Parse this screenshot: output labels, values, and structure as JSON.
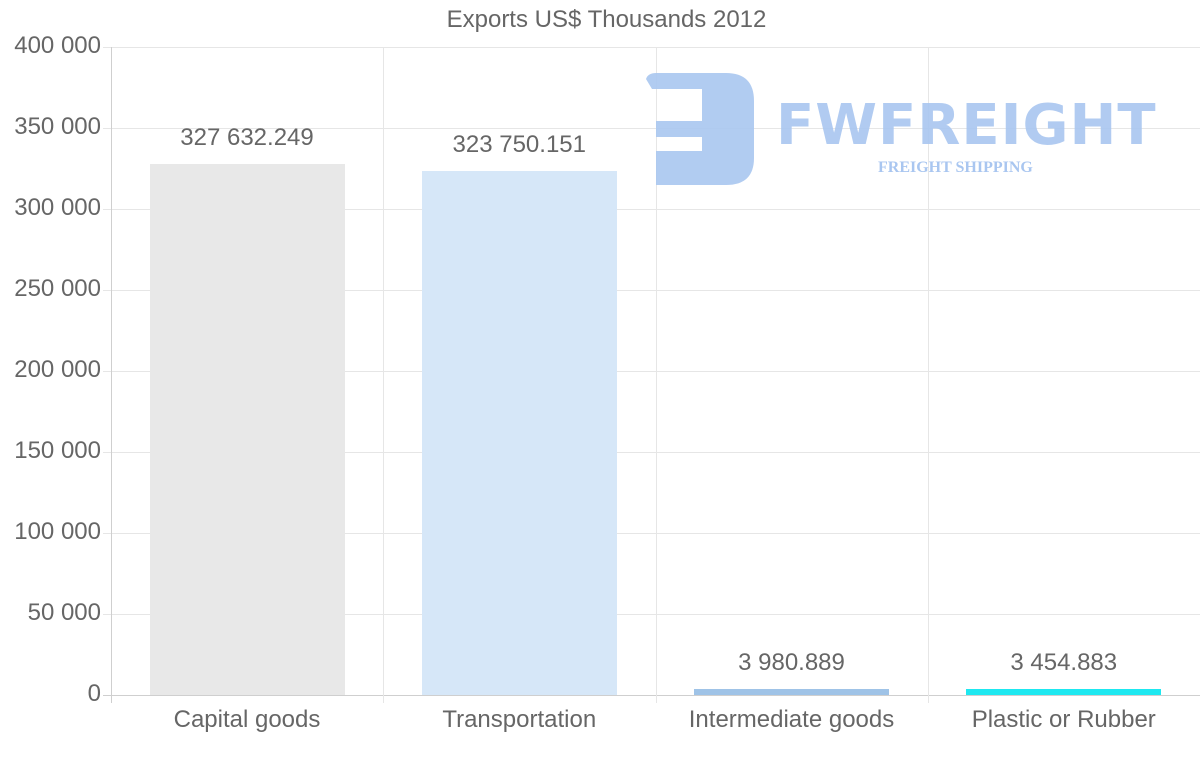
{
  "chart_data": {
    "type": "bar",
    "title": "Exports US$ Thousands 2012",
    "categories": [
      "Capital goods",
      "Transportation",
      "Intermediate goods",
      "Plastic or Rubber"
    ],
    "values": [
      327632.249,
      323750.151,
      3980.889,
      3454.883
    ],
    "value_labels": [
      "327 632.249",
      "323 750.151",
      "3 980.889",
      "3 454.883"
    ],
    "colors": [
      "#e8e8e8",
      "#d6e7f8",
      "#9fc3e7",
      "#1ee8f0"
    ],
    "xlabel": "",
    "ylabel": "",
    "ylim": [
      0,
      400000
    ],
    "yticks": [
      0,
      50000,
      100000,
      150000,
      200000,
      250000,
      300000,
      350000,
      400000
    ],
    "ytick_labels": [
      "0",
      "50 000",
      "100 000",
      "150 000",
      "200 000",
      "250 000",
      "300 000",
      "350 000",
      "400 000"
    ],
    "grid": true,
    "legend": "none"
  },
  "watermark": {
    "brand": "FWFREIGHT",
    "tagline": "FREIGHT SHIPPING",
    "color": "#a9c6f0"
  }
}
